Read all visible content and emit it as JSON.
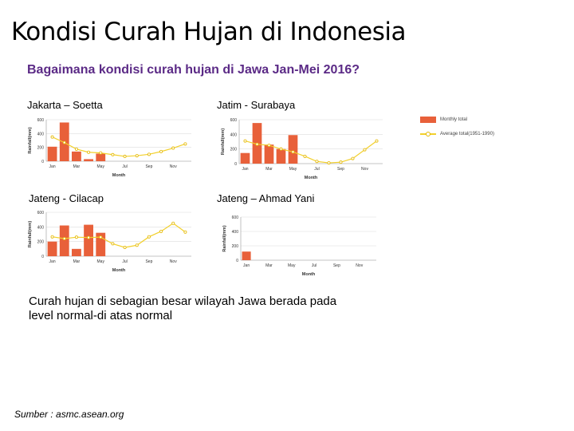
{
  "title": "Kondisi Curah Hujan di Indonesia",
  "subtitle": "Bagaimana kondisi curah hujan di Jawa Jan-Mei 2016?",
  "note": "Curah hujan di sebagian besar wilayah Jawa berada pada level normal-di atas normal",
  "source": "Sumber : asmc.asean.org",
  "colors": {
    "bar": "#e8603a",
    "line": "#f2d02c",
    "marker_stroke": "#e5b800",
    "grid": "#dddddd"
  },
  "legend": {
    "monthly": "Monthly total",
    "average": "Average total(1951-1990)"
  },
  "chart_data": [
    {
      "type": "bar",
      "station": "Jakarta – Soetta",
      "xlabel": "Month",
      "ylabel": "Rainfall(mm)",
      "ylim": [
        0,
        600
      ],
      "yticks": [
        "0",
        "200",
        "400",
        "600"
      ],
      "categories": [
        "Jan",
        "Feb",
        "Mar",
        "Apr",
        "May",
        "Jun",
        "Jul",
        "Aug",
        "Sep",
        "Oct",
        "Nov",
        "Dec"
      ],
      "xticks": [
        "Jan",
        "Mar",
        "May",
        "Jul",
        "Sep",
        "Nov"
      ],
      "series": [
        {
          "name": "Monthly total",
          "values": [
            210,
            560,
            140,
            30,
            110,
            null,
            null,
            null,
            null,
            null,
            null,
            null
          ]
        },
        {
          "name": "Average total(1951-1990)",
          "values": [
            350,
            270,
            175,
            130,
            120,
            95,
            70,
            80,
            100,
            140,
            190,
            250
          ]
        }
      ]
    },
    {
      "type": "bar",
      "station": "Jatim - Surabaya",
      "xlabel": "Month",
      "ylabel": "Rainfall(mm)",
      "ylim": [
        0,
        600
      ],
      "yticks": [
        "0",
        "200",
        "400",
        "600"
      ],
      "categories": [
        "Jan",
        "Feb",
        "Mar",
        "Apr",
        "May",
        "Jun",
        "Jul",
        "Aug",
        "Sep",
        "Oct",
        "Nov",
        "Dec"
      ],
      "xticks": [
        "Jan",
        "Mar",
        "May",
        "Jul",
        "Sep",
        "Nov"
      ],
      "series": [
        {
          "name": "Monthly total",
          "values": [
            145,
            555,
            260,
            200,
            390,
            null,
            null,
            null,
            null,
            null,
            null,
            null
          ]
        },
        {
          "name": "Average total(1951-1990)",
          "values": [
            310,
            265,
            250,
            200,
            160,
            100,
            30,
            10,
            20,
            70,
            190,
            310
          ]
        }
      ]
    },
    {
      "type": "bar",
      "station": "Jateng - Cilacap",
      "xlabel": "Month",
      "ylabel": "Rainfall(mm)",
      "ylim": [
        0,
        600
      ],
      "yticks": [
        "0",
        "200",
        "400",
        "600"
      ],
      "categories": [
        "Jan",
        "Feb",
        "Mar",
        "Apr",
        "May",
        "Jun",
        "Jul",
        "Aug",
        "Sep",
        "Oct",
        "Nov",
        "Dec"
      ],
      "xticks": [
        "Jan",
        "Mar",
        "May",
        "Jul",
        "Sep",
        "Nov"
      ],
      "series": [
        {
          "name": "Monthly total",
          "values": [
            200,
            420,
            100,
            430,
            320,
            null,
            null,
            null,
            null,
            null,
            null,
            null
          ]
        },
        {
          "name": "Average total(1951-1990)",
          "values": [
            265,
            240,
            260,
            255,
            260,
            170,
            120,
            150,
            265,
            340,
            450,
            330
          ]
        }
      ]
    },
    {
      "type": "bar",
      "station": "Jateng – Ahmad Yani",
      "xlabel": "Month",
      "ylabel": "Rainfall(mm)",
      "ylim": [
        0,
        600
      ],
      "yticks": [
        "0",
        "200",
        "400",
        "600"
      ],
      "categories": [
        "Jan",
        "Feb",
        "Mar",
        "Apr",
        "May",
        "Jun",
        "Jul",
        "Aug",
        "Sep",
        "Oct",
        "Nov",
        "Dec"
      ],
      "xticks": [
        "Jan",
        "Mar",
        "May",
        "Jul",
        "Sep",
        "Nov"
      ],
      "series": [
        {
          "name": "Monthly total",
          "values": [
            120,
            null,
            null,
            null,
            null,
            null,
            null,
            null,
            null,
            null,
            null,
            null
          ]
        },
        {
          "name": "Average total(1951-1990)",
          "values": [
            null,
            null,
            null,
            null,
            null,
            null,
            null,
            null,
            null,
            null,
            null,
            null
          ]
        }
      ]
    }
  ]
}
